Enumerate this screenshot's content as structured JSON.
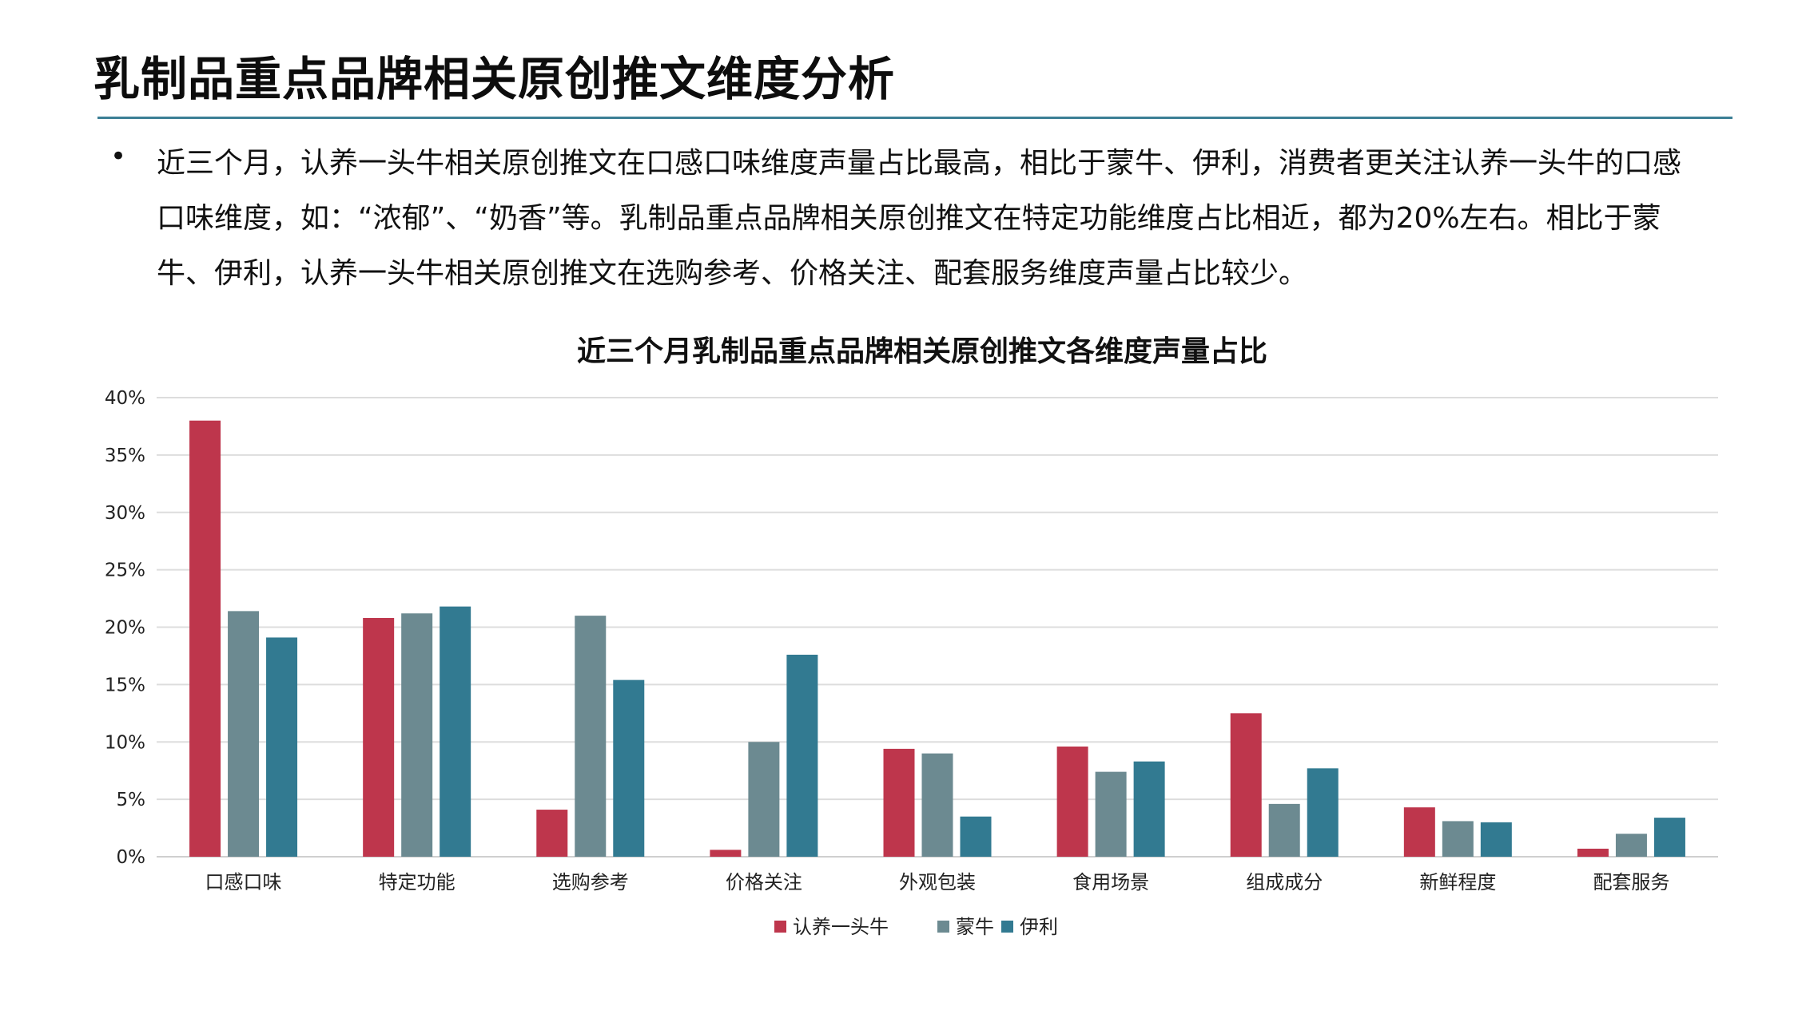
{
  "header": {
    "title": "乳制品重点品牌相关原创推文维度分析"
  },
  "summary": {
    "bullet_symbol": "•",
    "text": "近三个月，认养一头牛相关原创推文在口感口味维度声量占比最高，相比于蒙牛、伊利，消费者更关注认养一头牛的口感口味维度，如：“浓郁”、“奶香”等。乳制品重点品牌相关原创推文在特定功能维度占比相近，都为20%左右。相比于蒙牛、伊利，认养一头牛相关原创推文在选购参考、价格关注、配套服务维度声量占比较少。"
  },
  "chart_data": {
    "type": "bar",
    "title": "近三个月乳制品重点品牌相关原创推文各维度声量占比",
    "xlabel": "",
    "ylabel": "",
    "ylim": [
      0,
      40
    ],
    "yticks": [
      0,
      5,
      10,
      15,
      20,
      25,
      30,
      35,
      40
    ],
    "ytick_labels": [
      "0%",
      "5%",
      "10%",
      "15%",
      "20%",
      "25%",
      "30%",
      "35%",
      "40%"
    ],
    "grid": true,
    "legend_position": "bottom-center",
    "categories": [
      "口感口味",
      "特定功能",
      "选购参考",
      "价格关注",
      "外观包装",
      "食用场景",
      "组成成分",
      "新鲜程度",
      "配套服务"
    ],
    "series": [
      {
        "name": "认养一头牛",
        "color": "#be364c",
        "values": [
          38.0,
          20.8,
          4.1,
          0.6,
          9.4,
          9.6,
          12.5,
          4.3,
          0.7
        ]
      },
      {
        "name": "蒙牛",
        "color": "#6c8a91",
        "values": [
          21.4,
          21.2,
          21.0,
          10.0,
          9.0,
          7.4,
          4.6,
          3.1,
          2.0
        ]
      },
      {
        "name": "伊利",
        "color": "#327a91",
        "values": [
          19.1,
          21.8,
          15.4,
          17.6,
          3.5,
          8.3,
          7.7,
          3.0,
          3.4
        ]
      }
    ]
  }
}
